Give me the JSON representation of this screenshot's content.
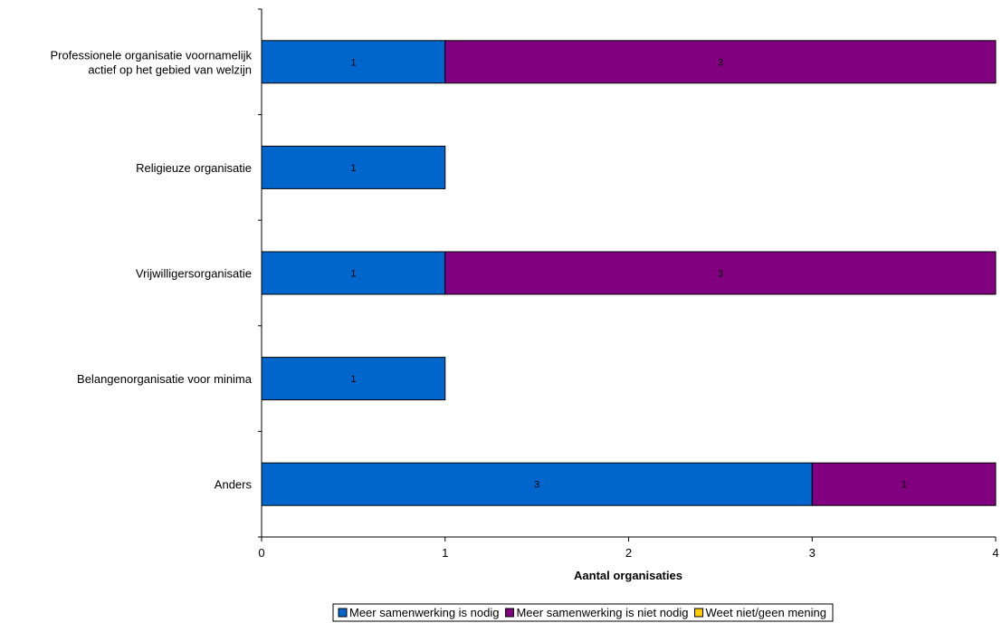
{
  "chart_data": {
    "type": "bar",
    "orientation": "horizontal",
    "stacked": true,
    "categories": [
      [
        "Professionele organisatie voornamelijk",
        "actief op het gebied van welzijn"
      ],
      [
        "Religieuze organisatie"
      ],
      [
        "Vrijwilligersorganisatie"
      ],
      [
        "Belangenorganisatie voor minima"
      ],
      [
        "Anders"
      ]
    ],
    "series": [
      {
        "name": "Meer samenwerking is nodig",
        "color": "#0066CC",
        "values": [
          1,
          1,
          1,
          1,
          3
        ]
      },
      {
        "name": "Meer samenwerking is niet nodig",
        "color": "#800080",
        "values": [
          3,
          0,
          3,
          0,
          1
        ]
      },
      {
        "name": "Weet niet/geen mening",
        "color": "#FFCC00",
        "values": [
          0,
          0,
          0,
          0,
          0
        ]
      }
    ],
    "xlabel": "Aantal organisaties",
    "ylabel": "",
    "xlim": [
      0,
      4
    ],
    "xticks": [
      0,
      1,
      2,
      3,
      4
    ],
    "grid": false,
    "legend_position": "bottom"
  }
}
